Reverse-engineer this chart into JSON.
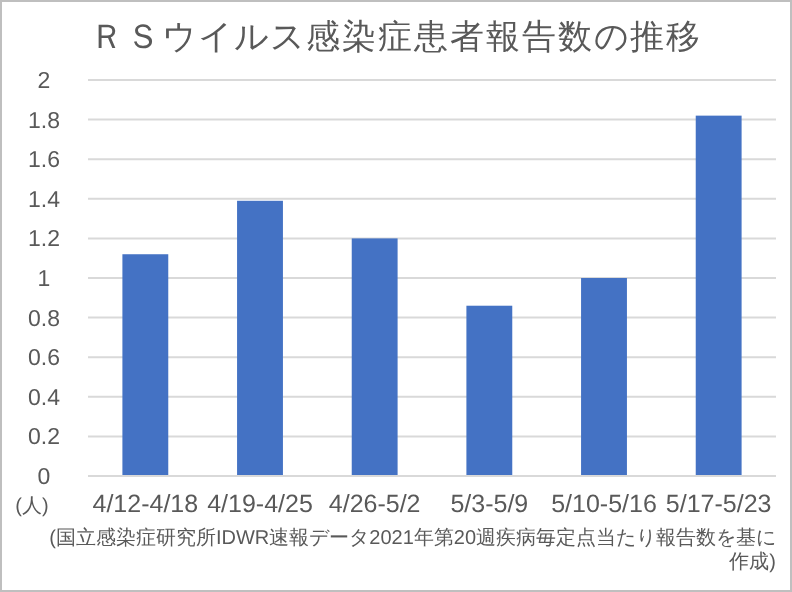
{
  "chart_data": {
    "type": "bar",
    "title": "ＲＳウイルス感染症患者報告数の推移",
    "ylabel": "(人)",
    "categories": [
      "4/12-4/18",
      "4/19-4/25",
      "4/26-5/2",
      "5/3-5/9",
      "5/10-5/16",
      "5/17-5/23"
    ],
    "values": [
      1.12,
      1.39,
      1.2,
      0.86,
      1.0,
      1.82
    ],
    "color": "#4472c4",
    "ylim": [
      0,
      2
    ],
    "yticks": [
      0,
      0.2,
      0.4,
      0.6,
      0.8,
      1,
      1.2,
      1.4,
      1.6,
      1.8,
      2
    ],
    "grid": "y",
    "annotations": [
      "(国立感染症研究所IDWR速報データ2021年第20週疾病毎定点当たり報告数を基に作成)"
    ]
  }
}
